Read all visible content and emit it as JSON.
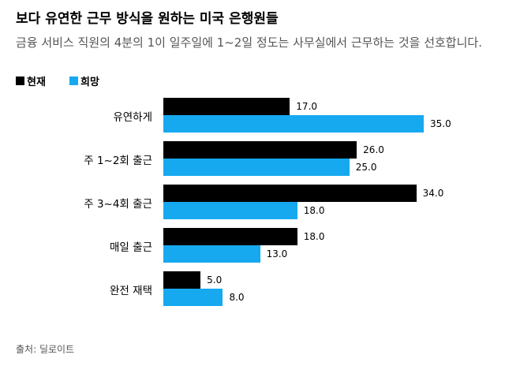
{
  "chart_data": {
    "type": "bar",
    "orientation": "horizontal",
    "title": "보다 유연한 근무 방식을 원하는 미국 은행원들",
    "subtitle": "금융 서비스 직원의 4분의 1이 일주일에 1~2일 정도는 사무실에서 근무하는 것을 선호합니다.",
    "categories": [
      "유연하게",
      "주 1~2회 출근",
      "주 3~4회 출근",
      "매일 출근",
      "완전 재택"
    ],
    "series": [
      {
        "name": "현재",
        "color": "#000000",
        "values": [
          17,
          26,
          34,
          18,
          5
        ],
        "value_labels": [
          "17.0",
          "26.0",
          "34.0",
          "18.0",
          "5.0"
        ]
      },
      {
        "name": "희망",
        "color": "#16a9f0",
        "values": [
          35,
          25,
          18,
          13,
          8
        ],
        "value_labels": [
          "35.0",
          "25.0",
          "18.0",
          "13.0",
          "8.0"
        ]
      }
    ],
    "source": "출처: 딜로이트"
  }
}
